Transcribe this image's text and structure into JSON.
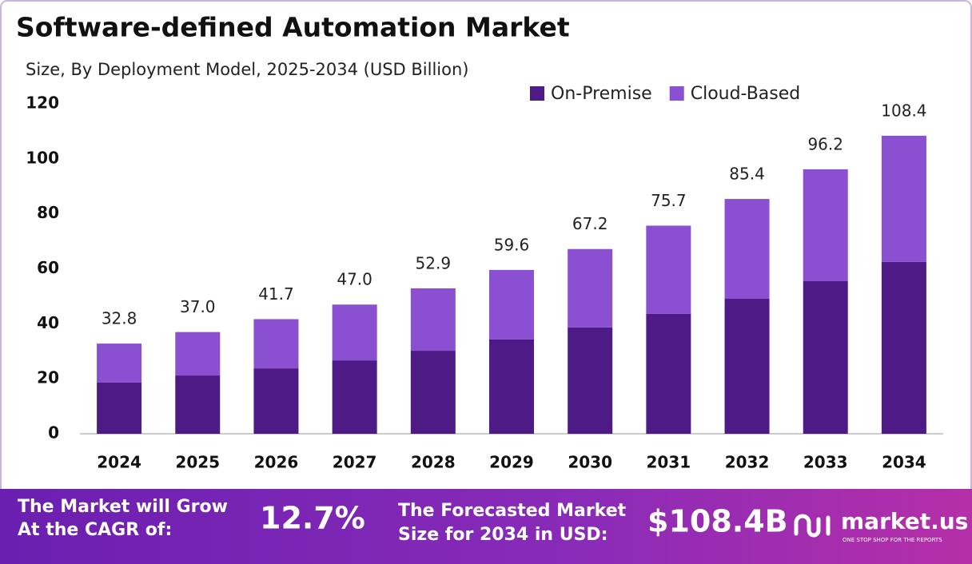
{
  "chart_data": {
    "type": "stacked-bar",
    "title": "Software-defined Automation Market",
    "subtitle": "Size, By Deployment Model, 2025-2034 (USD Billion)",
    "categories": [
      "2024",
      "2025",
      "2026",
      "2027",
      "2028",
      "2029",
      "2030",
      "2031",
      "2032",
      "2033",
      "2034"
    ],
    "series": [
      {
        "name": "On-Premise",
        "color": "#4e1a85",
        "values": [
          18.6,
          21.2,
          23.8,
          26.7,
          30.2,
          34.3,
          38.7,
          43.6,
          49.1,
          55.5,
          62.5
        ]
      },
      {
        "name": "Cloud-Based",
        "color": "#8b4fd1",
        "values": [
          14.2,
          15.8,
          17.9,
          20.3,
          22.7,
          25.3,
          28.5,
          32.1,
          36.3,
          40.7,
          45.9
        ]
      }
    ],
    "totals": [
      32.8,
      37.0,
      41.7,
      47.0,
      52.9,
      59.6,
      67.2,
      75.7,
      85.4,
      96.2,
      108.4
    ],
    "total_labels": [
      "32.8",
      "37.0",
      "41.7",
      "47.0",
      "52.9",
      "59.6",
      "67.2",
      "75.7",
      "85.4",
      "96.2",
      "108.4"
    ],
    "ylim": [
      0,
      120
    ],
    "yticks": [
      0,
      20,
      40,
      60,
      80,
      100,
      120
    ],
    "legend": "top-right"
  },
  "footer": {
    "cagr_text": [
      "The Market will Grow",
      "At the CAGR of:"
    ],
    "cagr_value": "12.7%",
    "forecast_text": [
      "The Forecasted Market",
      "Size for 2034 in USD:"
    ],
    "forecast_value": "$108.4B",
    "brand": "market.us",
    "tagline": "ONE STOP SHOP FOR THE REPORTS"
  }
}
